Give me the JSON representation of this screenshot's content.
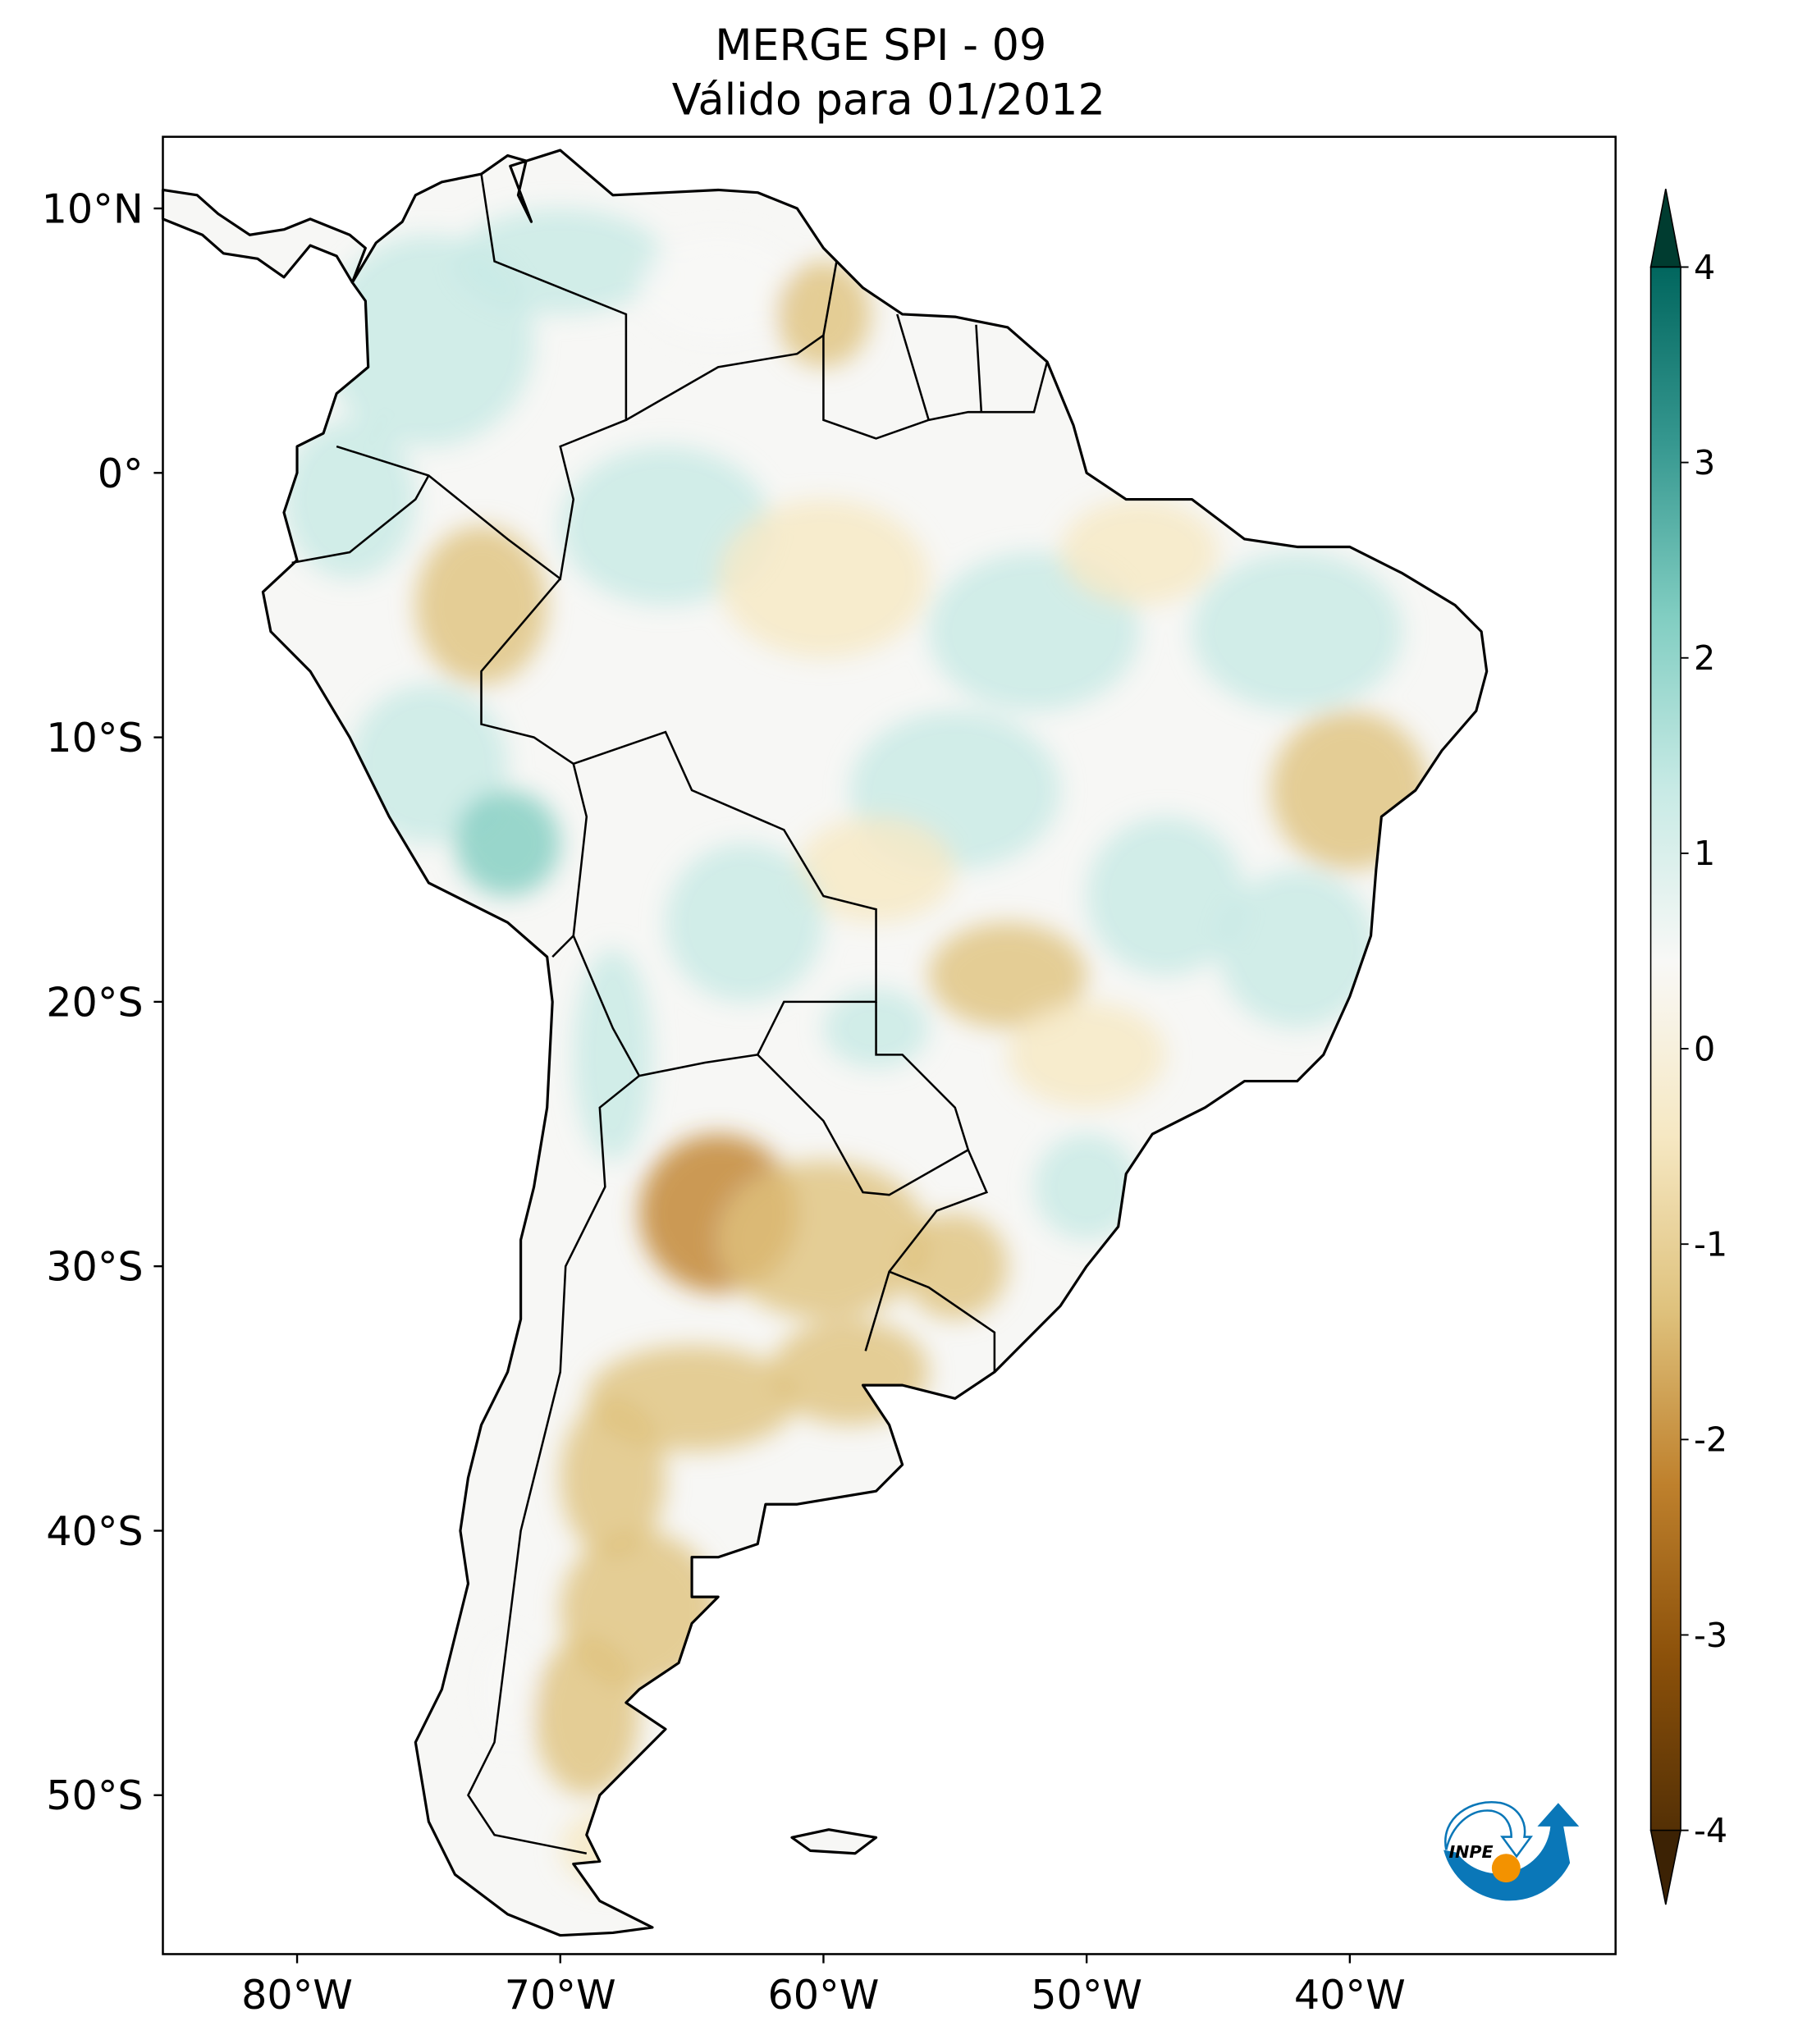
{
  "title": {
    "line1": "MERGE   SPI - 09",
    "line2": "Válido para 01/2012"
  },
  "map": {
    "extent": {
      "lon": [
        -85,
        -30
      ],
      "lat": [
        -56,
        12.7
      ]
    },
    "lat_ticks": [
      {
        "value": 10,
        "label": "10°N"
      },
      {
        "value": 0,
        "label": "0°"
      },
      {
        "value": -10,
        "label": "10°S"
      },
      {
        "value": -20,
        "label": "20°S"
      },
      {
        "value": -30,
        "label": "30°S"
      },
      {
        "value": -40,
        "label": "40°S"
      },
      {
        "value": -50,
        "label": "50°S"
      }
    ],
    "lon_ticks": [
      {
        "value": -80,
        "label": "80°W"
      },
      {
        "value": -70,
        "label": "70°W"
      },
      {
        "value": -60,
        "label": "60°W"
      },
      {
        "value": -50,
        "label": "50°W"
      },
      {
        "value": -40,
        "label": "40°W"
      }
    ]
  },
  "colorbar": {
    "colormap": "BrBG",
    "range": [
      -4,
      4
    ],
    "extend": "both",
    "ticks": [
      {
        "value": 4,
        "label": "4"
      },
      {
        "value": 3,
        "label": "3"
      },
      {
        "value": 2,
        "label": "2"
      },
      {
        "value": 1,
        "label": "1"
      },
      {
        "value": 0,
        "label": "0"
      },
      {
        "value": -1,
        "label": "-1"
      },
      {
        "value": -2,
        "label": "-2"
      },
      {
        "value": -3,
        "label": "-3"
      },
      {
        "value": -4,
        "label": "-4"
      }
    ],
    "colors": [
      "#3c2204",
      "#543005",
      "#8c510a",
      "#bf812d",
      "#dfc27d",
      "#f6e8c3",
      "#f8f8f6",
      "#c7eae5",
      "#80cdc1",
      "#35978f",
      "#01665e",
      "#003c30"
    ]
  },
  "logo": {
    "text": "INPE",
    "blue": "#0a77b8",
    "orange": "#f39200"
  }
}
